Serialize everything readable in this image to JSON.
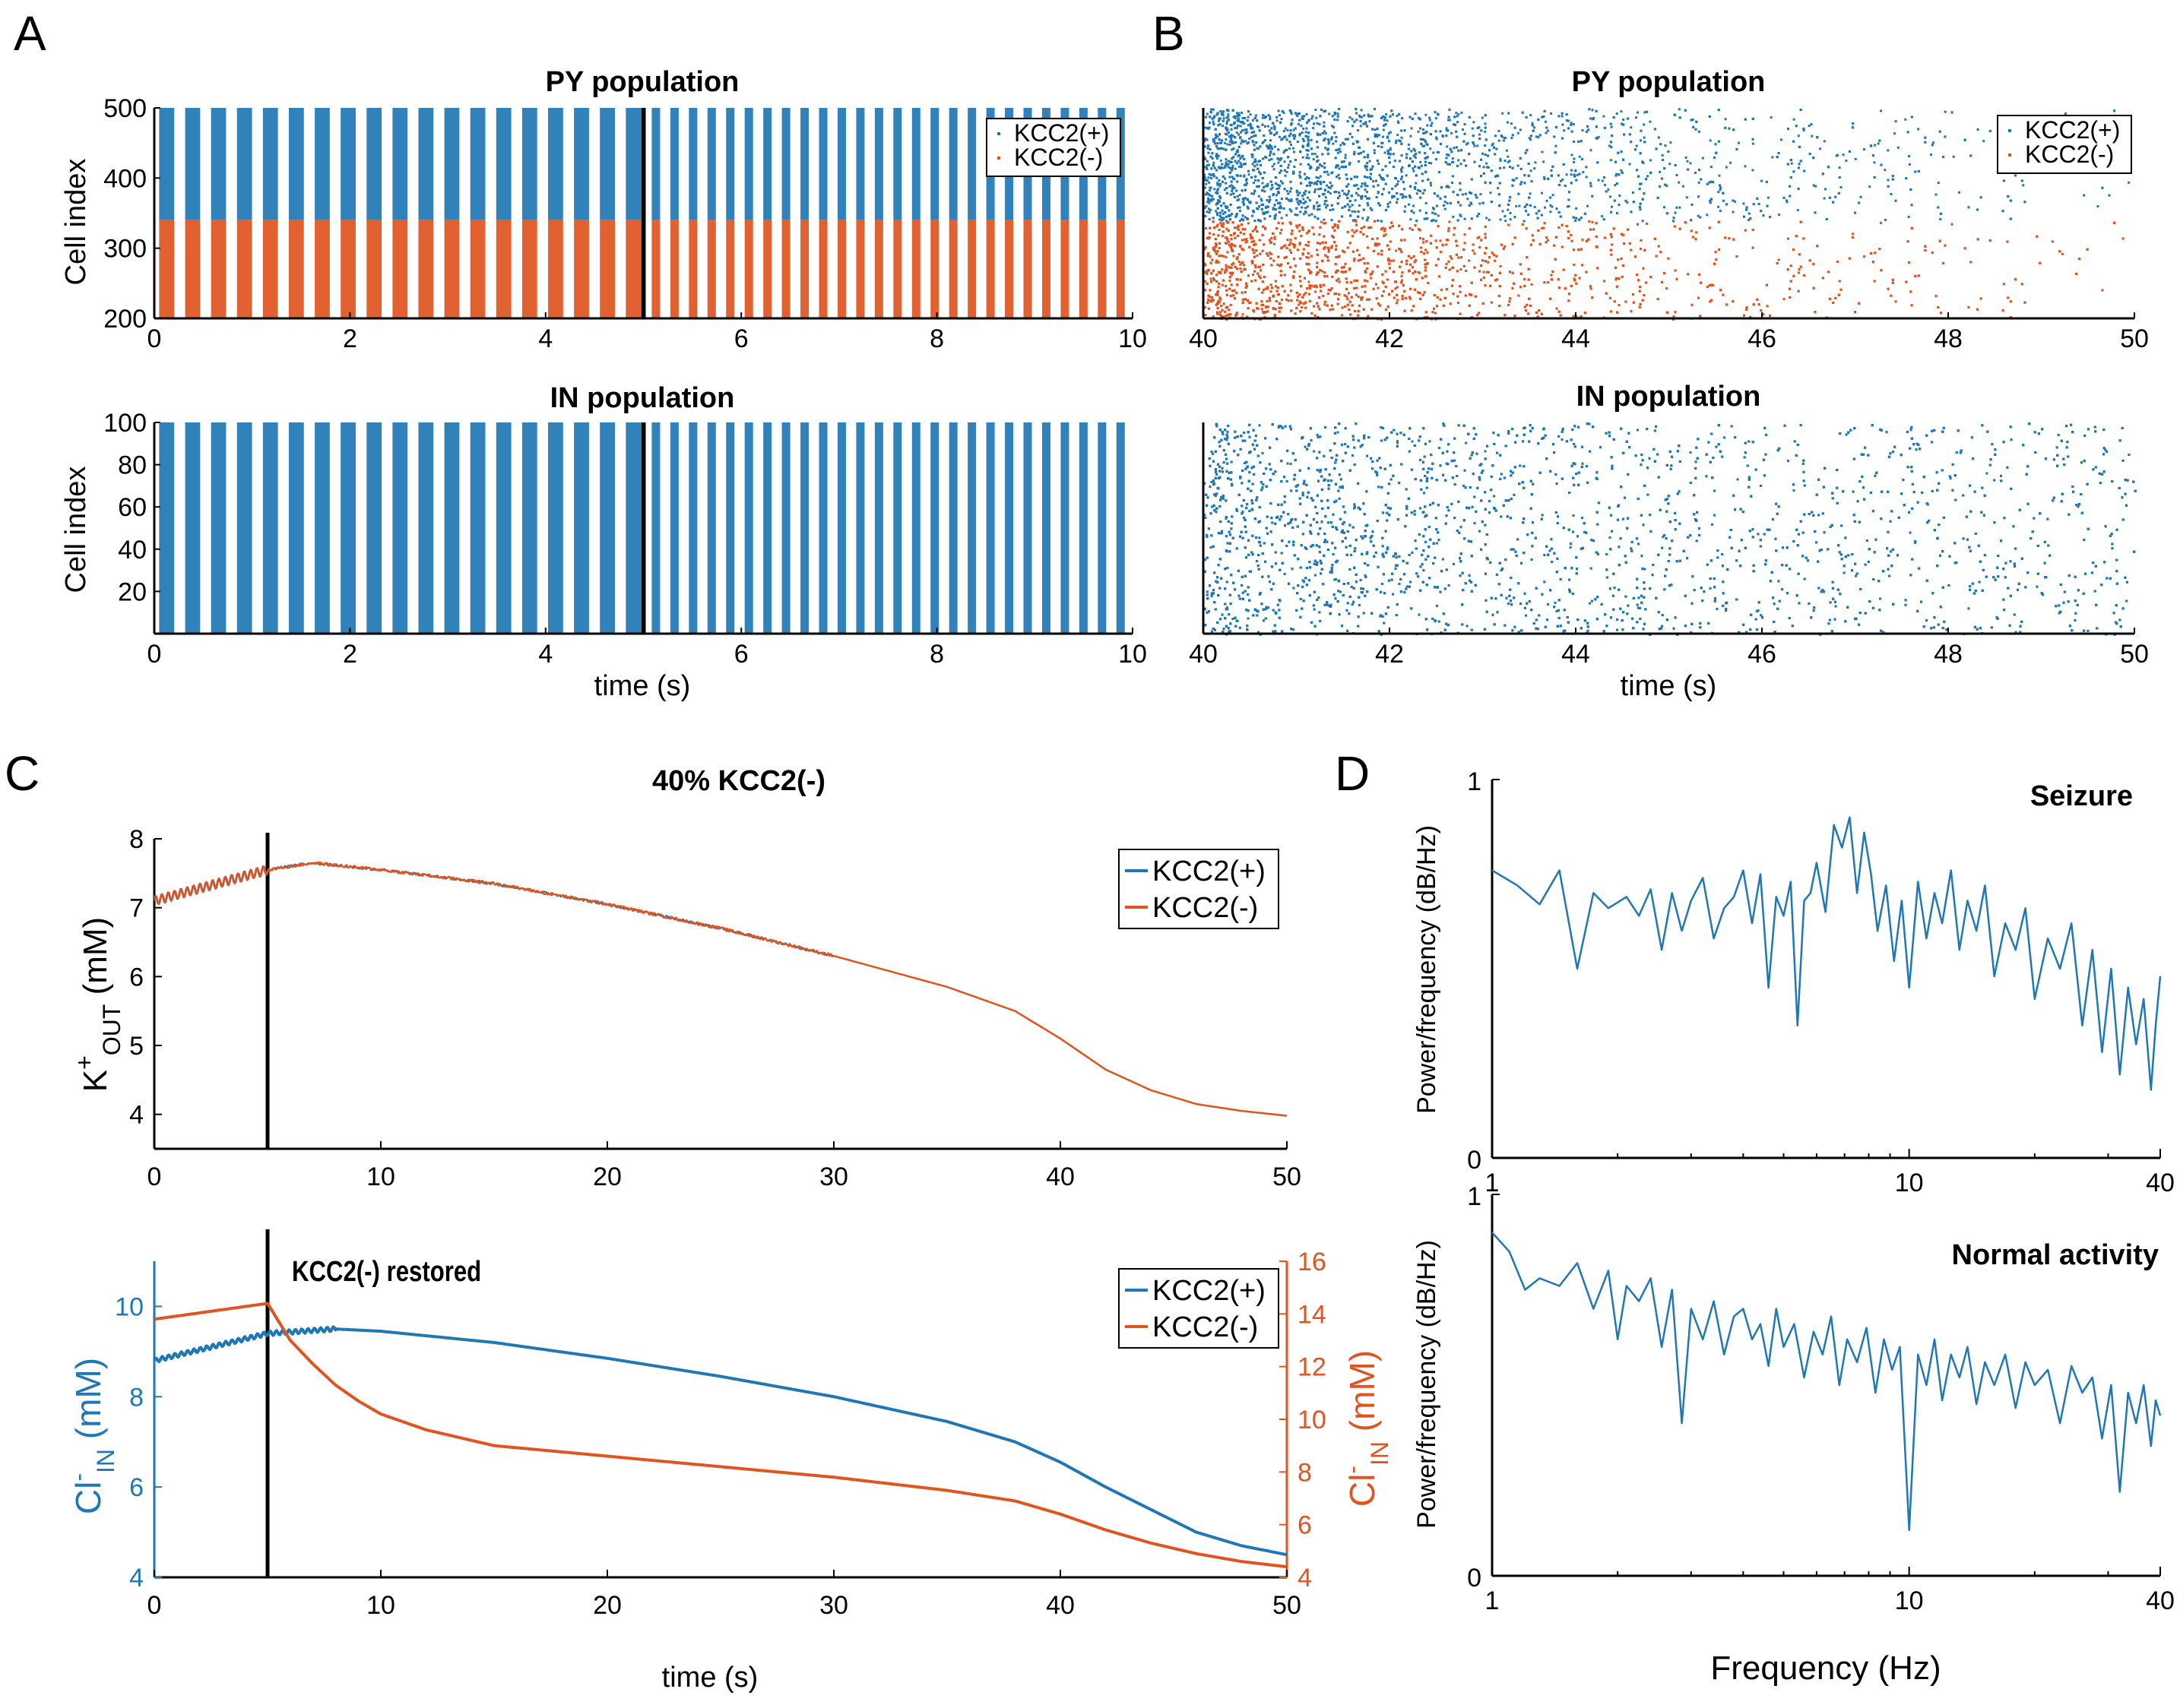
{
  "colors": {
    "blue": "#1f77b4",
    "orange": "#e0541f",
    "black": "#000000"
  },
  "panels": {
    "A": "A",
    "B": "B",
    "C": "C",
    "D": "D"
  },
  "chart_data": [
    {
      "id": "A1",
      "type": "scatter",
      "subtype": "raster",
      "title": "PY population",
      "xlabel": "",
      "ylabel": "Cell index",
      "xlim": [
        0,
        10
      ],
      "ylim": [
        200,
        500
      ],
      "xticks": [
        0,
        2,
        4,
        6,
        8,
        10
      ],
      "yticks": [
        200,
        300,
        400,
        500
      ],
      "marker_x": 5,
      "bursts_before_marker_s": 0.265,
      "bursts_after_marker_s": 0.19,
      "series": [
        {
          "name": "KCC2(+)",
          "color": "#1f77b4",
          "cell_range": [
            340,
            500
          ]
        },
        {
          "name": "KCC2(-)",
          "color": "#e0541f",
          "cell_range": [
            200,
            340
          ]
        }
      ],
      "legend": "top-right"
    },
    {
      "id": "A2",
      "type": "scatter",
      "subtype": "raster",
      "title": "IN population",
      "xlabel": "time (s)",
      "ylabel": "Cell index",
      "xlim": [
        0,
        10
      ],
      "ylim": [
        0,
        100
      ],
      "xticks": [
        0,
        2,
        4,
        6,
        8,
        10
      ],
      "yticks": [
        20,
        40,
        60,
        80,
        100
      ],
      "marker_x": 5,
      "bursts_before_marker_s": 0.265,
      "bursts_after_marker_s": 0.19,
      "series": [
        {
          "name": "IN",
          "color": "#1f77b4",
          "cell_range": [
            0,
            100
          ]
        }
      ]
    },
    {
      "id": "B1",
      "type": "scatter",
      "subtype": "raster",
      "title": "PY population",
      "xlabel": "",
      "xlim": [
        40,
        50
      ],
      "ylim": [
        200,
        500
      ],
      "xticks": [
        40,
        42,
        44,
        46,
        48,
        50
      ],
      "series": [
        {
          "name": "KCC2(+)",
          "color": "#1f77b4",
          "cell_range": [
            340,
            500
          ]
        },
        {
          "name": "KCC2(-)",
          "color": "#e0541f",
          "cell_range": [
            200,
            340
          ]
        }
      ],
      "legend": "top-right"
    },
    {
      "id": "B2",
      "type": "scatter",
      "subtype": "raster",
      "title": "IN population",
      "xlabel": "time (s)",
      "xlim": [
        40,
        50
      ],
      "ylim": [
        0,
        100
      ],
      "xticks": [
        40,
        42,
        44,
        46,
        48,
        50
      ],
      "series": [
        {
          "name": "IN",
          "color": "#1f77b4",
          "cell_range": [
            0,
            100
          ]
        }
      ]
    },
    {
      "id": "C1",
      "type": "line",
      "title": "40% KCC2(-)",
      "xlabel": "",
      "ylabel_main": "K",
      "ylabel_sup": "+",
      "ylabel_sub": "OUT",
      "ylabel_unit": " (mM)",
      "xlim": [
        0,
        50
      ],
      "ylim": [
        3.5,
        8
      ],
      "xticks": [
        0,
        10,
        20,
        30,
        40,
        50
      ],
      "yticks": [
        4,
        5,
        6,
        7,
        8
      ],
      "marker_x": 5,
      "x": [
        0,
        5,
        7,
        10,
        15,
        20,
        25,
        30,
        35,
        38,
        40,
        42,
        44,
        46,
        48,
        50
      ],
      "series": [
        {
          "name": "KCC2(+)",
          "color": "#1f77b4",
          "values": [
            7.1,
            7.55,
            7.65,
            7.55,
            7.35,
            7.05,
            6.7,
            6.3,
            5.85,
            5.5,
            5.1,
            4.65,
            4.35,
            4.15,
            4.05,
            3.98
          ]
        },
        {
          "name": "KCC2(-)",
          "color": "#e0541f",
          "values": [
            7.1,
            7.55,
            7.65,
            7.55,
            7.35,
            7.05,
            6.7,
            6.3,
            5.85,
            5.5,
            5.1,
            4.65,
            4.35,
            4.15,
            4.05,
            3.98
          ]
        }
      ],
      "legend": "top-right"
    },
    {
      "id": "C2",
      "type": "line",
      "xlabel": "time (s)",
      "ylabel_left_main": "Cl",
      "ylabel_left_sup": "-",
      "ylabel_left_sub": "IN",
      "ylabel_left_unit": " (mM)",
      "ylabel_right_main": "Cl",
      "ylabel_right_sup": "-",
      "ylabel_right_sub": "IN",
      "ylabel_right_unit": " (mM)",
      "annotation": "KCC2(-) restored",
      "xlim": [
        0,
        50
      ],
      "ylim_left": [
        4,
        11
      ],
      "ylim_right": [
        4,
        16
      ],
      "xticks": [
        0,
        10,
        20,
        30,
        40,
        50
      ],
      "yticks_left": [
        4,
        6,
        8,
        10
      ],
      "yticks_right": [
        4,
        6,
        8,
        10,
        12,
        14,
        16
      ],
      "marker_x": 5,
      "series": [
        {
          "name": "KCC2(+)",
          "color": "#1f77b4",
          "axis": "left",
          "x": [
            0,
            5,
            8,
            10,
            15,
            20,
            25,
            30,
            35,
            38,
            40,
            42,
            44,
            46,
            48,
            50
          ],
          "values": [
            8.8,
            9.4,
            9.5,
            9.45,
            9.2,
            8.85,
            8.45,
            8.0,
            7.45,
            7.0,
            6.55,
            6.0,
            5.5,
            5.0,
            4.7,
            4.5
          ]
        },
        {
          "name": "KCC2(-)",
          "color": "#e0541f",
          "axis": "right",
          "x": [
            0,
            5,
            5.5,
            6,
            7,
            8,
            9,
            10,
            12,
            15,
            20,
            25,
            30,
            35,
            38,
            40,
            42,
            44,
            46,
            48,
            50
          ],
          "values": [
            13.8,
            14.4,
            13.7,
            13.0,
            12.1,
            11.3,
            10.7,
            10.2,
            9.6,
            9.0,
            8.6,
            8.2,
            7.8,
            7.3,
            6.9,
            6.4,
            5.8,
            5.3,
            4.9,
            4.6,
            4.4
          ]
        }
      ],
      "legend": "top-right"
    },
    {
      "id": "D1",
      "type": "line",
      "title": "Seizure",
      "xlabel": "",
      "ylabel": "Power/frequency (dB/Hz)",
      "xscale": "log",
      "xlim": [
        1,
        40
      ],
      "ylim": [
        0,
        1
      ],
      "xticks": [
        1,
        10,
        40
      ],
      "yticks": [
        0,
        1
      ],
      "series": [
        {
          "name": "Seizure",
          "color": "#1f77b4",
          "x": [
            1,
            1.15,
            1.3,
            1.45,
            1.6,
            1.75,
            1.9,
            2.1,
            2.25,
            2.4,
            2.55,
            2.7,
            2.85,
            3.0,
            3.2,
            3.4,
            3.6,
            3.8,
            4.0,
            4.2,
            4.4,
            4.6,
            4.8,
            5.0,
            5.2,
            5.4,
            5.6,
            5.8,
            6.0,
            6.3,
            6.6,
            6.9,
            7.2,
            7.5,
            7.8,
            8.1,
            8.4,
            8.8,
            9.2,
            9.6,
            10.0,
            10.5,
            11,
            11.5,
            12,
            12.6,
            13.2,
            13.8,
            14.5,
            15.2,
            16,
            17,
            18,
            19,
            20,
            21.5,
            23,
            24.5,
            26,
            27.5,
            29,
            30.5,
            32,
            33.5,
            35,
            36.5,
            38,
            39,
            40
          ],
          "values": [
            0.76,
            0.72,
            0.67,
            0.76,
            0.5,
            0.7,
            0.66,
            0.69,
            0.64,
            0.71,
            0.55,
            0.7,
            0.6,
            0.68,
            0.74,
            0.58,
            0.66,
            0.69,
            0.76,
            0.62,
            0.75,
            0.45,
            0.69,
            0.64,
            0.73,
            0.35,
            0.68,
            0.7,
            0.78,
            0.65,
            0.88,
            0.82,
            0.9,
            0.7,
            0.86,
            0.75,
            0.6,
            0.72,
            0.52,
            0.68,
            0.45,
            0.73,
            0.58,
            0.7,
            0.62,
            0.76,
            0.55,
            0.68,
            0.6,
            0.72,
            0.48,
            0.62,
            0.55,
            0.66,
            0.42,
            0.58,
            0.5,
            0.62,
            0.35,
            0.55,
            0.28,
            0.5,
            0.22,
            0.45,
            0.3,
            0.42,
            0.18,
            0.35,
            0.48
          ]
        }
      ]
    },
    {
      "id": "D2",
      "type": "line",
      "title": "Normal activity",
      "xlabel": "Frequency (Hz)",
      "ylabel": "Power/frequency (dB/Hz)",
      "xscale": "log",
      "xlim": [
        1,
        40
      ],
      "ylim": [
        0,
        1
      ],
      "xticks": [
        1,
        10,
        40
      ],
      "yticks": [
        0,
        1
      ],
      "series": [
        {
          "name": "Normal activity",
          "color": "#1f77b4",
          "x": [
            1,
            1.1,
            1.2,
            1.3,
            1.45,
            1.6,
            1.75,
            1.9,
            2.0,
            2.1,
            2.25,
            2.4,
            2.55,
            2.7,
            2.85,
            3.0,
            3.2,
            3.4,
            3.6,
            3.8,
            4.0,
            4.2,
            4.4,
            4.6,
            4.8,
            5.0,
            5.3,
            5.6,
            5.9,
            6.2,
            6.5,
            6.8,
            7.1,
            7.5,
            7.9,
            8.3,
            8.7,
            9.1,
            9.5,
            10.0,
            10.5,
            11,
            11.5,
            12,
            12.6,
            13.2,
            13.8,
            14.5,
            15.2,
            16,
            17,
            18,
            19,
            20,
            21.5,
            23,
            24.5,
            26,
            27.5,
            29,
            30.5,
            32,
            33.5,
            35,
            36.5,
            38,
            39,
            40
          ],
          "values": [
            0.9,
            0.85,
            0.75,
            0.78,
            0.76,
            0.82,
            0.7,
            0.8,
            0.62,
            0.76,
            0.72,
            0.78,
            0.6,
            0.75,
            0.4,
            0.7,
            0.62,
            0.72,
            0.58,
            0.68,
            0.7,
            0.62,
            0.66,
            0.55,
            0.7,
            0.6,
            0.66,
            0.52,
            0.64,
            0.58,
            0.68,
            0.5,
            0.62,
            0.56,
            0.65,
            0.48,
            0.62,
            0.54,
            0.6,
            0.12,
            0.58,
            0.5,
            0.62,
            0.46,
            0.58,
            0.52,
            0.6,
            0.45,
            0.56,
            0.5,
            0.58,
            0.44,
            0.56,
            0.5,
            0.54,
            0.4,
            0.55,
            0.48,
            0.52,
            0.36,
            0.5,
            0.22,
            0.48,
            0.4,
            0.5,
            0.34,
            0.46,
            0.42
          ]
        }
      ]
    }
  ]
}
